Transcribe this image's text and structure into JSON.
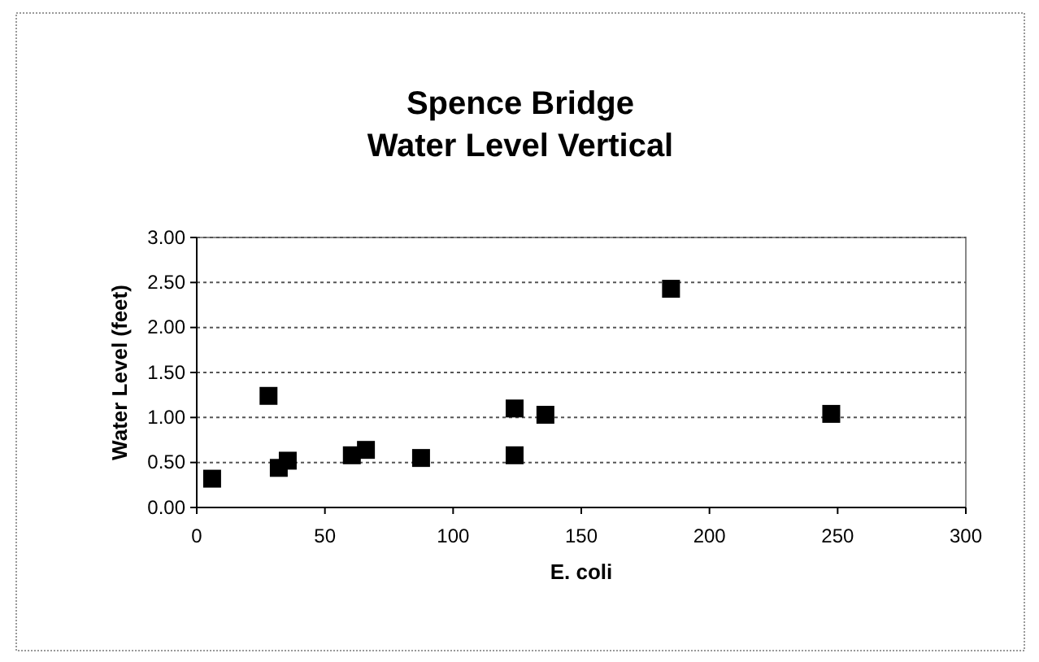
{
  "chart_data": {
    "type": "scatter",
    "title": "Spence Bridge\nWater Level Vertical",
    "xlabel": "E. coli",
    "ylabel": "Water Level (feet)",
    "x": [
      6,
      28,
      32,
      35.5,
      60.5,
      66,
      87.5,
      124,
      124,
      136,
      185,
      247.5
    ],
    "values": [
      0.32,
      1.24,
      0.44,
      0.52,
      0.58,
      0.64,
      0.55,
      1.1,
      0.58,
      1.03,
      2.43,
      1.04
    ],
    "color": "#000000",
    "marker": "square",
    "xlim": [
      0,
      300
    ],
    "xticks": [
      0,
      50,
      100,
      150,
      200,
      250,
      300
    ],
    "ylim": [
      0,
      3
    ],
    "yticks": [
      {
        "value": 0,
        "label": "0.00"
      },
      {
        "value": 0.5,
        "label": "0.50"
      },
      {
        "value": 1,
        "label": "1.00"
      },
      {
        "value": 1.5,
        "label": "1.50"
      },
      {
        "value": 2,
        "label": "2.00"
      },
      {
        "value": 2.5,
        "label": "2.50"
      },
      {
        "value": 3,
        "label": "3.00"
      }
    ],
    "grid": "y"
  }
}
